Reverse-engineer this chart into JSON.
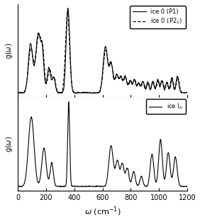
{
  "xlabel": "$\\omega$ (cm$^{-1}$)",
  "ylabel": "g($\\omega$)",
  "xlim": [
    0,
    1200
  ],
  "xticks": [
    0,
    200,
    400,
    600,
    800,
    1000,
    1200
  ],
  "background_color": "#ffffff",
  "legend1_solid": "ice 0 (P1)",
  "legend1_dash": "ice 0 (P2$_1$)",
  "legend2": "ice I$_h$",
  "line_color": "#000000",
  "figsize": [
    2.82,
    3.12
  ],
  "dpi": 100
}
